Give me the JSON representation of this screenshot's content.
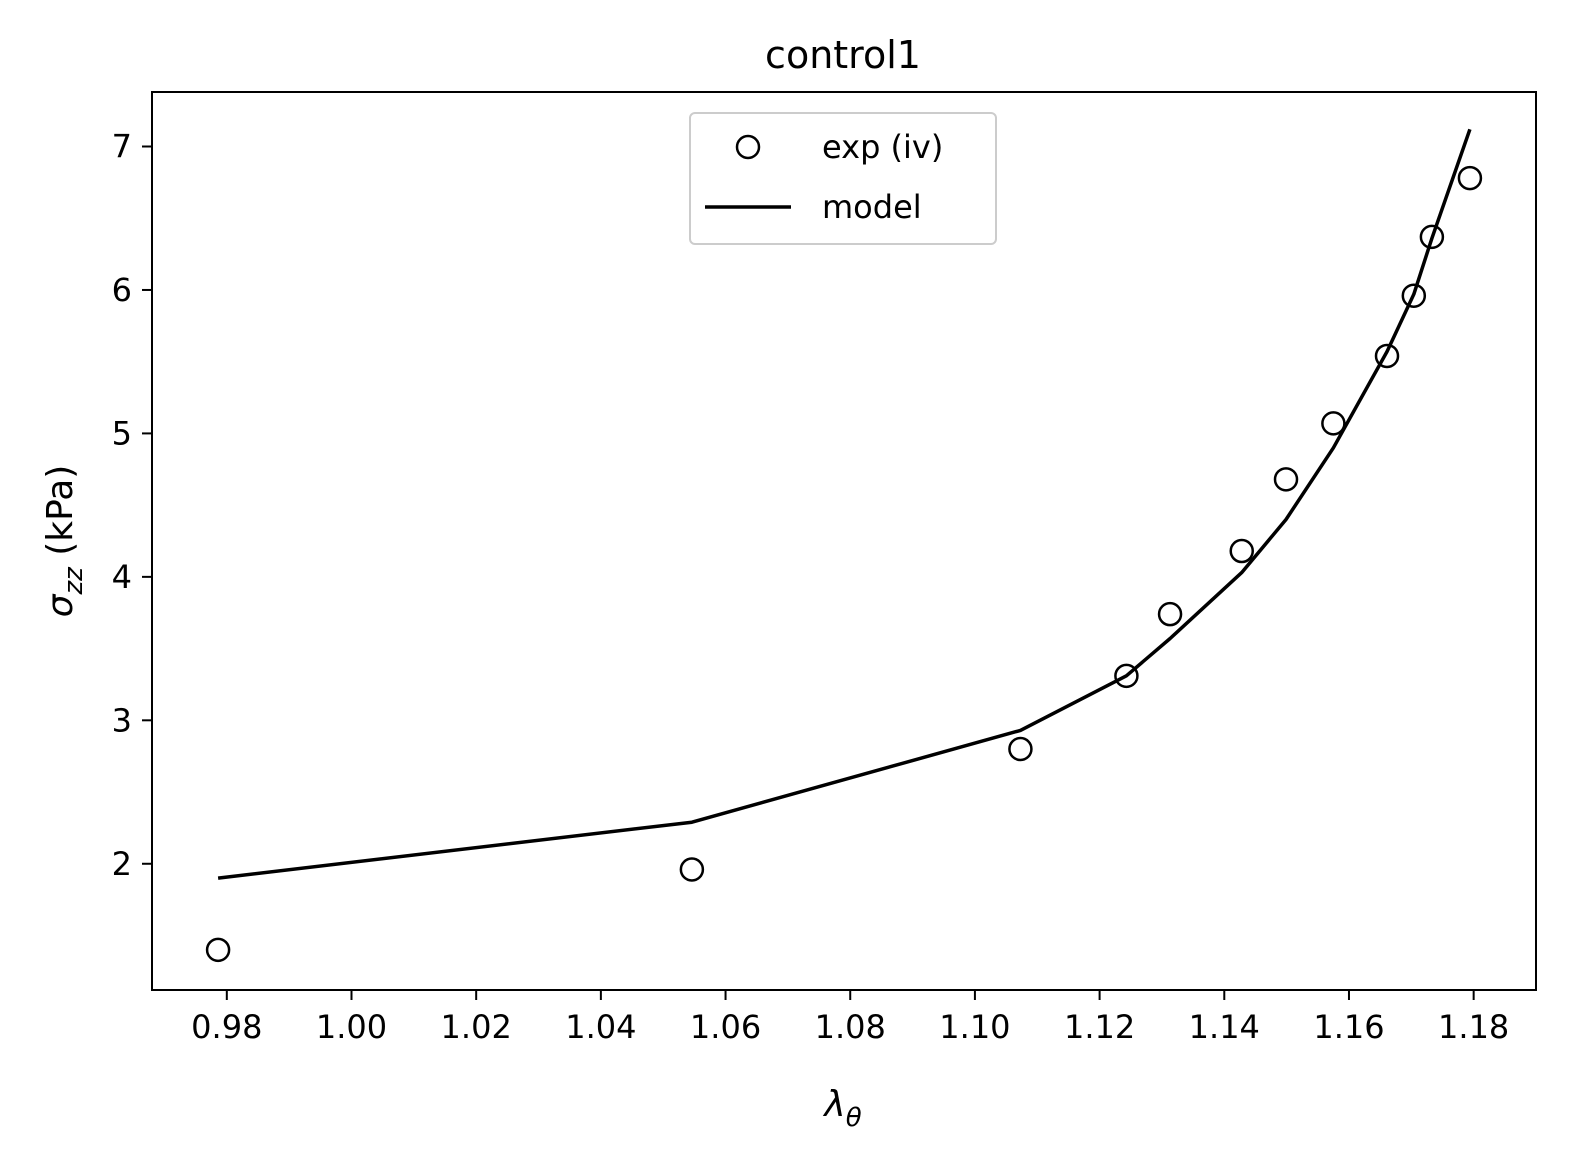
{
  "chart_data": {
    "type": "scatter",
    "title": "control1",
    "xlabel": {
      "symbol": "λ",
      "sub": "θ"
    },
    "ylabel": {
      "symbol": "σ",
      "sub": "zz",
      "unit": " (kPa)"
    },
    "xlim": [
      0.968,
      1.19
    ],
    "ylim": [
      1.12,
      7.38
    ],
    "xticks": [
      0.98,
      1.0,
      1.02,
      1.04,
      1.06,
      1.08,
      1.1,
      1.12,
      1.14,
      1.16,
      1.18
    ],
    "xtick_labels": [
      "0.98",
      "1.00",
      "1.02",
      "1.04",
      "1.06",
      "1.08",
      "1.10",
      "1.12",
      "1.14",
      "1.16",
      "1.18"
    ],
    "yticks": [
      2,
      3,
      4,
      5,
      6,
      7
    ],
    "ytick_labels": [
      "2",
      "3",
      "4",
      "5",
      "6",
      "7"
    ],
    "grid": false,
    "legend_position": "top-center",
    "series": [
      {
        "name": "exp (iv)",
        "kind": "markers",
        "marker": "open-circle",
        "color": "#000000",
        "x": [
          0.9786,
          1.0546,
          1.1073,
          1.1243,
          1.1313,
          1.1428,
          1.1499,
          1.1575,
          1.1661,
          1.1704,
          1.1733,
          1.1794
        ],
        "y": [
          1.4,
          1.96,
          2.8,
          3.31,
          3.74,
          4.18,
          4.68,
          5.07,
          5.54,
          5.96,
          6.37,
          6.78
        ]
      },
      {
        "name": "model",
        "kind": "line",
        "color": "#000000",
        "x": [
          0.9786,
          1.0546,
          1.1073,
          1.1243,
          1.1313,
          1.1428,
          1.1499,
          1.1575,
          1.1661,
          1.1704,
          1.1733,
          1.1794
        ],
        "y": [
          1.9,
          2.29,
          2.93,
          3.31,
          3.57,
          4.03,
          4.4,
          4.9,
          5.57,
          5.97,
          6.36,
          7.12
        ]
      }
    ]
  }
}
